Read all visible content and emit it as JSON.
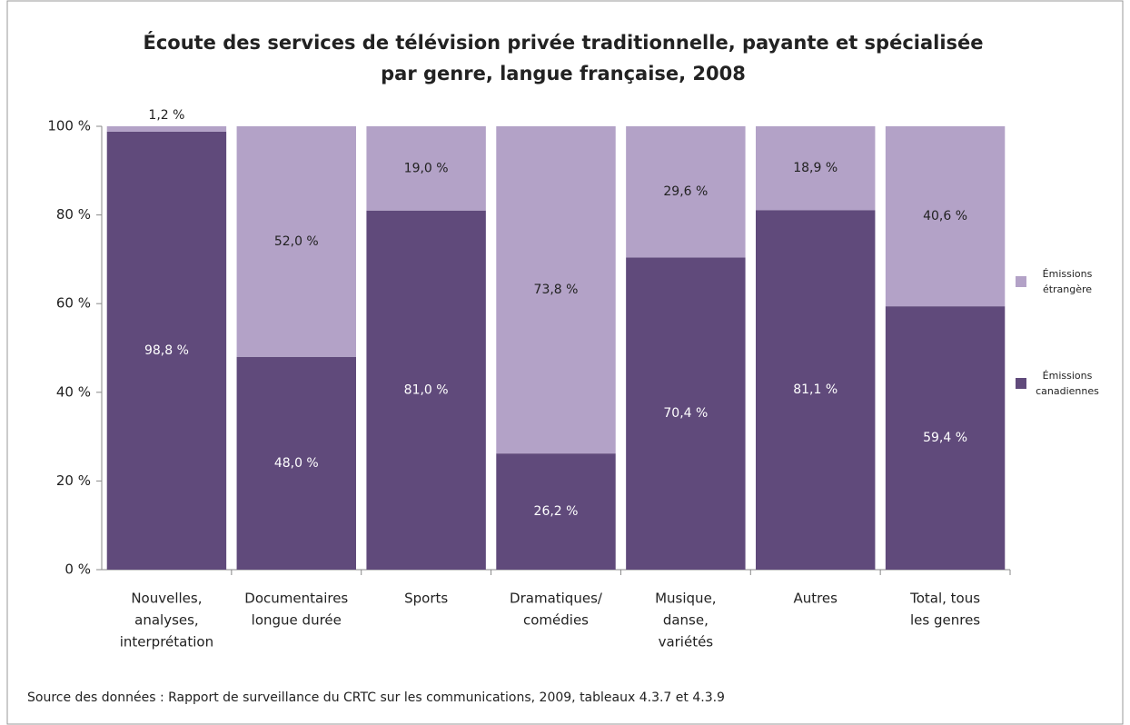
{
  "chart_data": {
    "type": "stacked_bar",
    "title": [
      "Écoute des services de télévision privée traditionnelle, payante et spécialisée",
      "par genre, langue française, 2008"
    ],
    "categories": [
      [
        "Nouvelles,",
        "analyses,",
        "interprétation"
      ],
      [
        "Documentaires",
        "longue durée"
      ],
      [
        "Sports"
      ],
      [
        "Dramatiques/",
        "comédies"
      ],
      [
        "Musique,",
        "danse,",
        "variétés"
      ],
      [
        "Autres"
      ],
      [
        "Total, tous",
        "les genres"
      ]
    ],
    "series": [
      {
        "name": "Émissions canadiennes",
        "color": "#604a7b",
        "values": [
          98.8,
          48.0,
          81.0,
          26.2,
          70.4,
          81.1,
          59.4
        ],
        "value_labels": [
          "98,8 %",
          "48,0 %",
          "81,0 %",
          "26,2 %",
          "70,4 %",
          "81,1 %",
          "59,4 %"
        ]
      },
      {
        "name": "Émissions étrangère",
        "color": "#b3a2c7",
        "values": [
          1.2,
          52.0,
          19.0,
          73.8,
          29.6,
          18.9,
          40.6
        ],
        "value_labels": [
          "1,2 %",
          "52,0 %",
          "19,0 %",
          "73,8 %",
          "29,6 %",
          "18,9 %",
          "40,6 %"
        ]
      }
    ],
    "ylim": [
      0,
      100
    ],
    "yticks": [
      {
        "value": 0,
        "label": "0 %"
      },
      {
        "value": 20,
        "label": "20 %"
      },
      {
        "value": 40,
        "label": "40 %"
      },
      {
        "value": 60,
        "label": "60 %"
      },
      {
        "value": 80,
        "label": "80 %"
      },
      {
        "value": 100,
        "label": "100 %"
      }
    ],
    "grid": false,
    "legend": "right",
    "source": "Source des données : Rapport de surveillance du CRTC sur les communications, 2009, tableaux 4.3.7 et 4.3.9"
  }
}
